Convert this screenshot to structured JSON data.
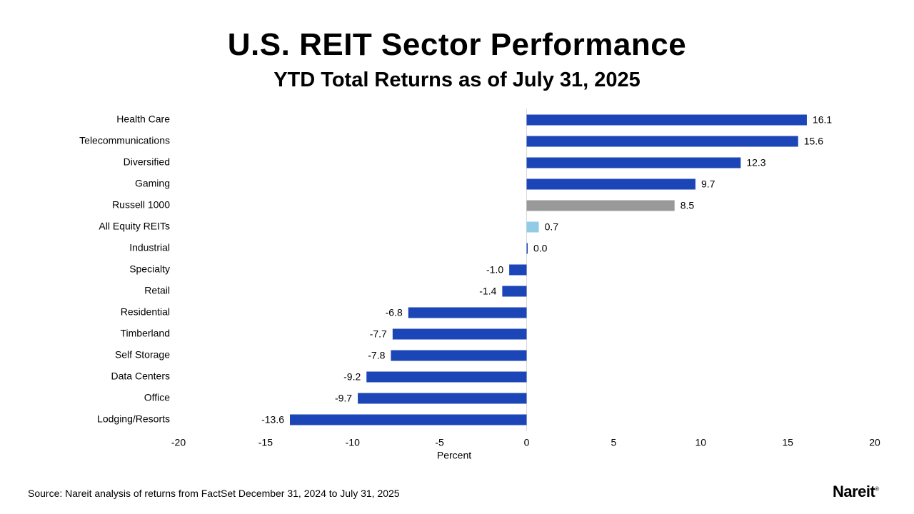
{
  "page": {
    "title": "U.S. REIT Sector Performance",
    "subtitle": "YTD Total Returns as of July 31, 2025",
    "source": "Source: Nareit analysis of returns from FactSet December 31, 2024 to July 31, 2025",
    "logo": "Nareit",
    "logo_mark": "®"
  },
  "chart_data": {
    "type": "bar",
    "orientation": "horizontal",
    "title": "U.S. REIT Sector Performance",
    "subtitle": "YTD Total Returns as of July 31, 2025",
    "xlabel": "Percent",
    "ylabel": "",
    "xlim": [
      -20,
      20
    ],
    "xticks": [
      -20,
      -15,
      -10,
      -5,
      0,
      5,
      10,
      15,
      20
    ],
    "grid": false,
    "categories": [
      "Health Care",
      "Telecommunications",
      "Diversified",
      "Gaming",
      "Russell 1000",
      "All Equity REITs",
      "Industrial",
      "Specialty",
      "Retail",
      "Residential",
      "Timberland",
      "Self Storage",
      "Data Centers",
      "Office",
      "Lodging/Resorts"
    ],
    "values": [
      16.1,
      15.6,
      12.3,
      9.7,
      8.5,
      0.7,
      0.0,
      -1.0,
      -1.4,
      -6.8,
      -7.7,
      -7.8,
      -9.2,
      -9.7,
      -13.6
    ],
    "labels": [
      "16.1",
      "15.6",
      "12.3",
      "9.7",
      "8.5",
      "0.7",
      "0.0",
      "-1.0",
      "-1.4",
      "-6.8",
      "-7.7",
      "-7.8",
      "-9.2",
      "-9.7",
      "-13.6"
    ],
    "colors": [
      "#1c46b8",
      "#1c46b8",
      "#1c46b8",
      "#1c46b8",
      "#999999",
      "#93cbe6",
      "#1c46b8",
      "#1c46b8",
      "#1c46b8",
      "#1c46b8",
      "#1c46b8",
      "#1c46b8",
      "#1c46b8",
      "#1c46b8",
      "#1c46b8"
    ],
    "axis_color": "#d9d9d9"
  }
}
